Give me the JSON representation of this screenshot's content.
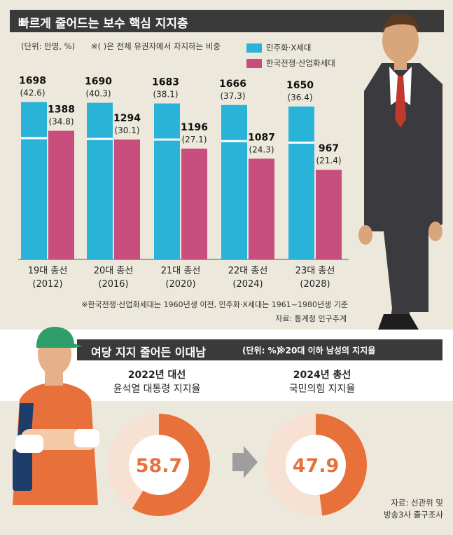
{
  "title": "빠르게 줄어드는 보수 핵심 지지층",
  "unit_note": "(단위: 만명, %)",
  "ratio_note": "※( )은 전체 유권자에서 차지하는 비중",
  "legend": [
    {
      "label": "민주화·X세대",
      "color": "#29b3d9"
    },
    {
      "label": "한국전쟁·산업화세대",
      "color": "#c84f7d"
    }
  ],
  "chart_data": {
    "type": "bar",
    "title": "빠르게 줄어드는 보수 핵심 지지층",
    "categories": [
      "19대 총선\n(2012)",
      "20대 총선\n(2016)",
      "21대 총선\n(2020)",
      "22대 총선\n(2024)",
      "23대 총선\n(2028)"
    ],
    "series": [
      {
        "name": "민주화·X세대",
        "values": [
          1698,
          1690,
          1683,
          1666,
          1650
        ],
        "shares": [
          "(42.6)",
          "(40.3)",
          "(38.1)",
          "(37.3)",
          "(36.4)"
        ]
      },
      {
        "name": "한국전쟁·산업화세대",
        "values": [
          1388,
          1294,
          1196,
          1087,
          967
        ],
        "shares": [
          "(34.8)",
          "(30.1)",
          "(27.1)",
          "(24.3)",
          "(21.4)"
        ]
      }
    ],
    "ylabel": "만명",
    "ylim": [
      0,
      1740
    ]
  },
  "footnote": "※한국전쟁·산업화세대는 1960년생 이전, 민주화·X세대는 1961~1980년생 기준",
  "source1": "자료: 통계청 인구추계",
  "section2": {
    "title": "여당 지지 줄어든 이대남",
    "unit": "(단위: %)",
    "note": "※20대 이하 남성의 지지율"
  },
  "donuts": [
    {
      "year": "2022년 대선",
      "label": "윤석열 대통령 지지율",
      "value": 58.7,
      "value_text": "58.7"
    },
    {
      "year": "2024년 총선",
      "label": "국민의힘 지지율",
      "value": 47.9,
      "value_text": "47.9"
    }
  ],
  "source2_line1": "자료: 선관위 및",
  "source2_line2": "방송3사 출구조사",
  "colors": {
    "blue": "#29b3d9",
    "pink": "#c84f7d",
    "orange": "#e8703a",
    "donut_bg": "#f7e1d3",
    "dark": "#3a3a3a"
  }
}
